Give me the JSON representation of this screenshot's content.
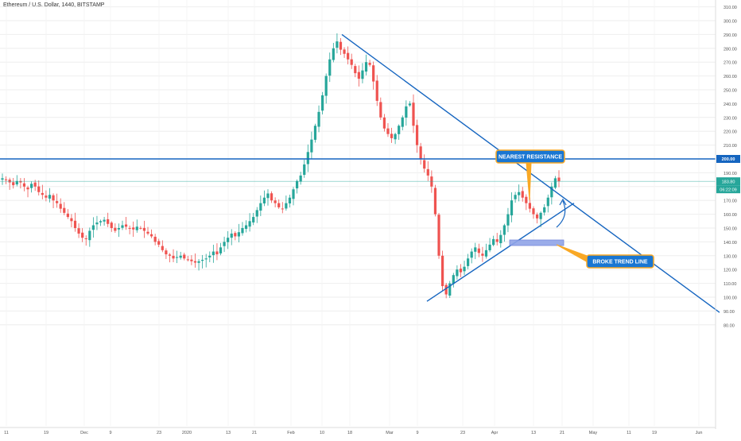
{
  "header": {
    "symbol_title": "Ethereum / U.S. Dollar, 1440, BITSTAMP"
  },
  "colors": {
    "up": "#26a69a",
    "down": "#ef5350",
    "trend": "#1565c0",
    "callout_fill": "#1976d2",
    "callout_border": "#f9a825",
    "price_line": "#26a69a",
    "grid": "#eeeeee",
    "axis_text": "#555555",
    "box": "#90a4e8"
  },
  "chart_data": {
    "type": "candlestick",
    "title": "Ethereum / U.S. Dollar, 1440, BITSTAMP",
    "ylim": [
      75,
      315
    ],
    "y_ticks": [
      "80.00",
      "90.00",
      "100.00",
      "110.00",
      "120.00",
      "130.00",
      "140.00",
      "150.00",
      "160.00",
      "170.00",
      "180.00",
      "190.00",
      "200.00",
      "210.00",
      "220.00",
      "230.00",
      "240.00",
      "250.00",
      "260.00",
      "270.00",
      "280.00",
      "290.00",
      "300.00",
      "310.00"
    ],
    "x_ticks": [
      "11",
      "19",
      "Dec",
      "9",
      "23",
      "2020",
      "13",
      "21",
      "Feb",
      "10",
      "18",
      "Mar",
      "9",
      "23",
      "Apr",
      "13",
      "21",
      "May",
      "11",
      "19",
      "Jun"
    ],
    "last_price_label": "183.80",
    "countdown_label": "06:22:09",
    "level_label": "200.00",
    "levels": [
      {
        "price": 200.0,
        "label": "200.00"
      }
    ],
    "annotations": [
      {
        "text": "NEAREST RESISTANCE"
      },
      {
        "text": "BROKE TREND LINE"
      }
    ],
    "candles_close_path": [
      186,
      185,
      183,
      181,
      184,
      183,
      180,
      178,
      182,
      180,
      176,
      174,
      172,
      174,
      170,
      168,
      164,
      161,
      158,
      155,
      150,
      146,
      143,
      142,
      148,
      152,
      154,
      155,
      156,
      153,
      150,
      148,
      150,
      152,
      151,
      150,
      149,
      151,
      150,
      148,
      146,
      144,
      140,
      138,
      134,
      131,
      130,
      128,
      129,
      130,
      128,
      127,
      126,
      125,
      126,
      127,
      128,
      130,
      133,
      131,
      136,
      140,
      143,
      146,
      144,
      147,
      150,
      152,
      155,
      158,
      163,
      168,
      172,
      175,
      170,
      168,
      165,
      164,
      168,
      172,
      178,
      184,
      188,
      196,
      205,
      214,
      224,
      234,
      246,
      260,
      272,
      280,
      285,
      279,
      276,
      272,
      268,
      262,
      258,
      264,
      270,
      268,
      256,
      242,
      230,
      222,
      218,
      215,
      218,
      224,
      230,
      238,
      240,
      224,
      210,
      200,
      193,
      188,
      180,
      160,
      130,
      108,
      102,
      110,
      116,
      120,
      118,
      122,
      128,
      133,
      136,
      132,
      130,
      134,
      138,
      142,
      140,
      145,
      152,
      160,
      170,
      174,
      176,
      172,
      168,
      164,
      160,
      157,
      161,
      165,
      172,
      180,
      186,
      183.8
    ],
    "trend_lines": [
      {
        "name": "descending-trend-line",
        "from": [
          "Feb 10",
          290
        ],
        "to": [
          "Jun 5",
          89
        ]
      },
      {
        "name": "rising-support-line",
        "from": [
          "Mar 11",
          97
        ],
        "to": [
          "Apr 29",
          168
        ]
      }
    ]
  }
}
